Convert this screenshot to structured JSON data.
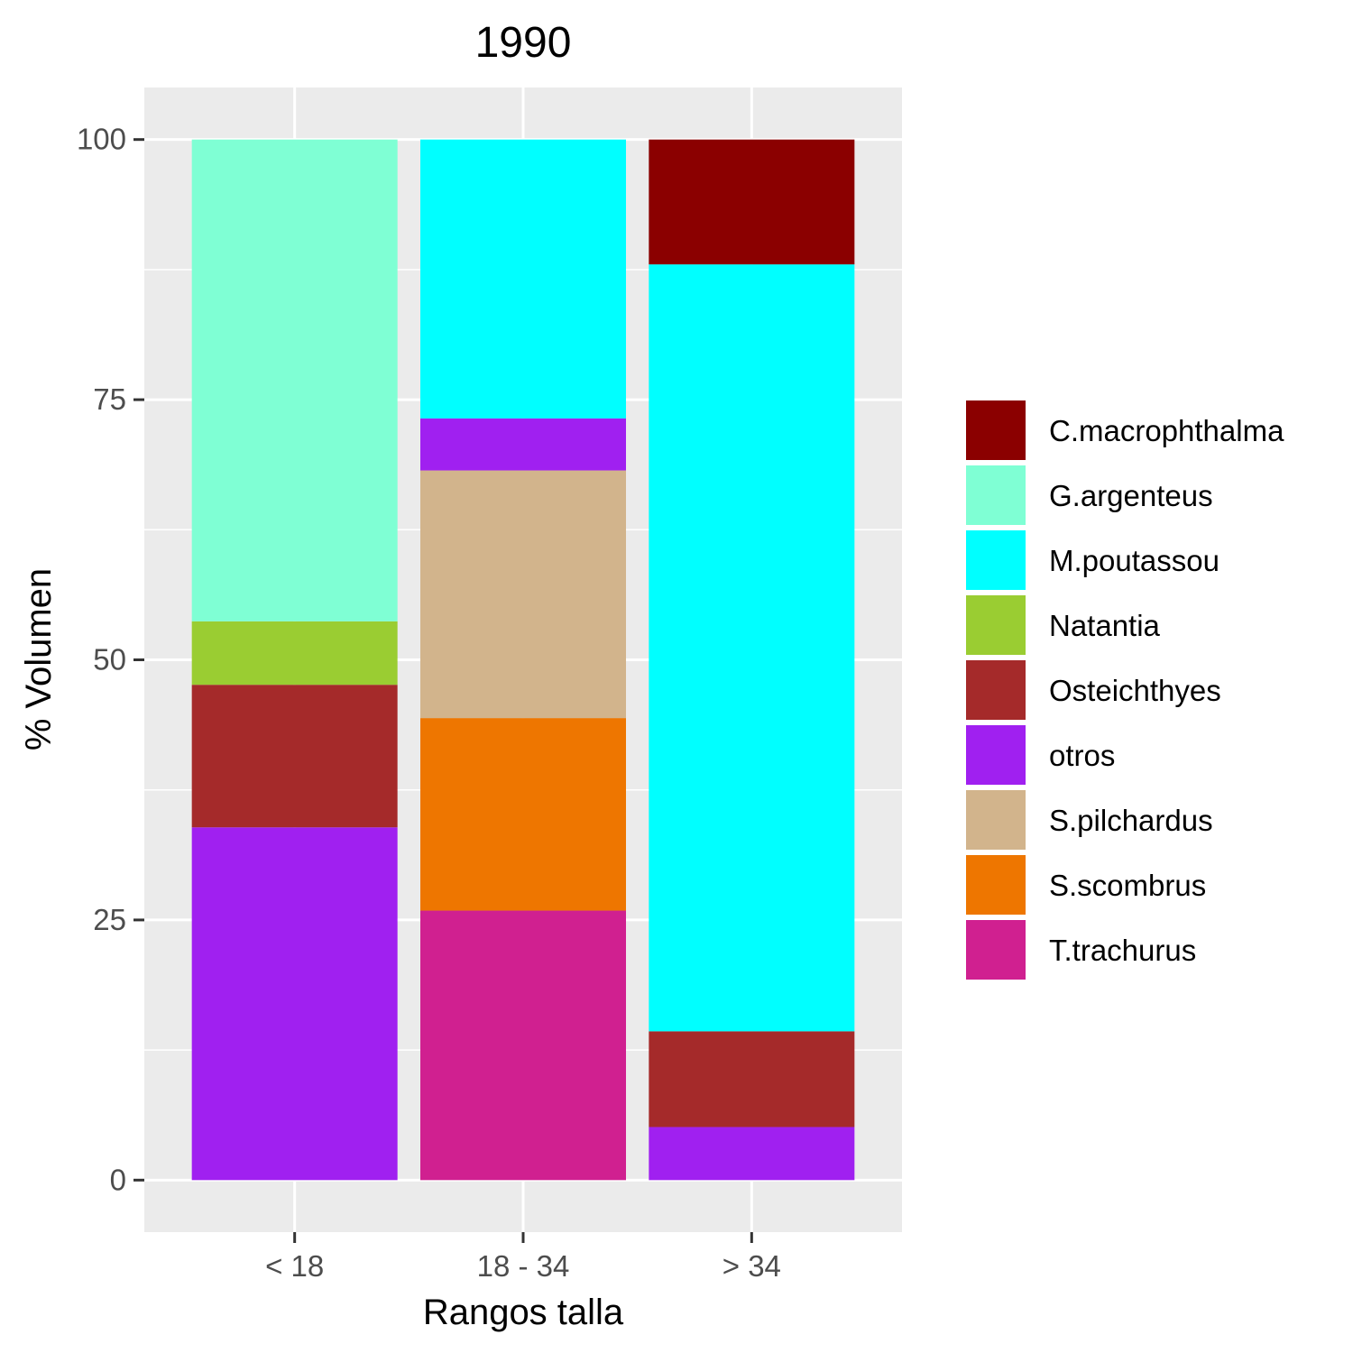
{
  "chart_data": {
    "type": "bar",
    "stacked": true,
    "title": "1990",
    "xlabel": "Rangos talla",
    "ylabel": "% Volumen",
    "ylim": [
      -5,
      105
    ],
    "yticks": [
      0,
      25,
      50,
      75,
      100
    ],
    "grid": true,
    "legend_position": "right",
    "categories": [
      "< 18",
      "18 - 34",
      "> 34"
    ],
    "series": [
      {
        "name": "C.macrophthalma",
        "color": "#8B0000",
        "values": [
          0,
          0,
          12
        ]
      },
      {
        "name": "G.argenteus",
        "color": "#7FFFD4",
        "values": [
          46.3,
          0,
          0
        ]
      },
      {
        "name": "M.poutassou",
        "color": "#00FFFF",
        "values": [
          0,
          26.8,
          73.7
        ]
      },
      {
        "name": "Natantia",
        "color": "#9ACD32",
        "values": [
          6.1,
          0,
          0
        ]
      },
      {
        "name": "Osteichthyes",
        "color": "#A52A2A",
        "values": [
          13.7,
          0,
          9.2
        ]
      },
      {
        "name": "otros",
        "color": "#A020F0",
        "values": [
          33.9,
          5,
          5.1
        ]
      },
      {
        "name": "S.pilchardus",
        "color": "#D2B48C",
        "values": [
          0,
          23.8,
          0
        ]
      },
      {
        "name": "S.scombrus",
        "color": "#EE7600",
        "values": [
          0,
          18.5,
          0
        ]
      },
      {
        "name": "T.trachurus",
        "color": "#D02090",
        "values": [
          0,
          25.9,
          0
        ]
      }
    ]
  }
}
